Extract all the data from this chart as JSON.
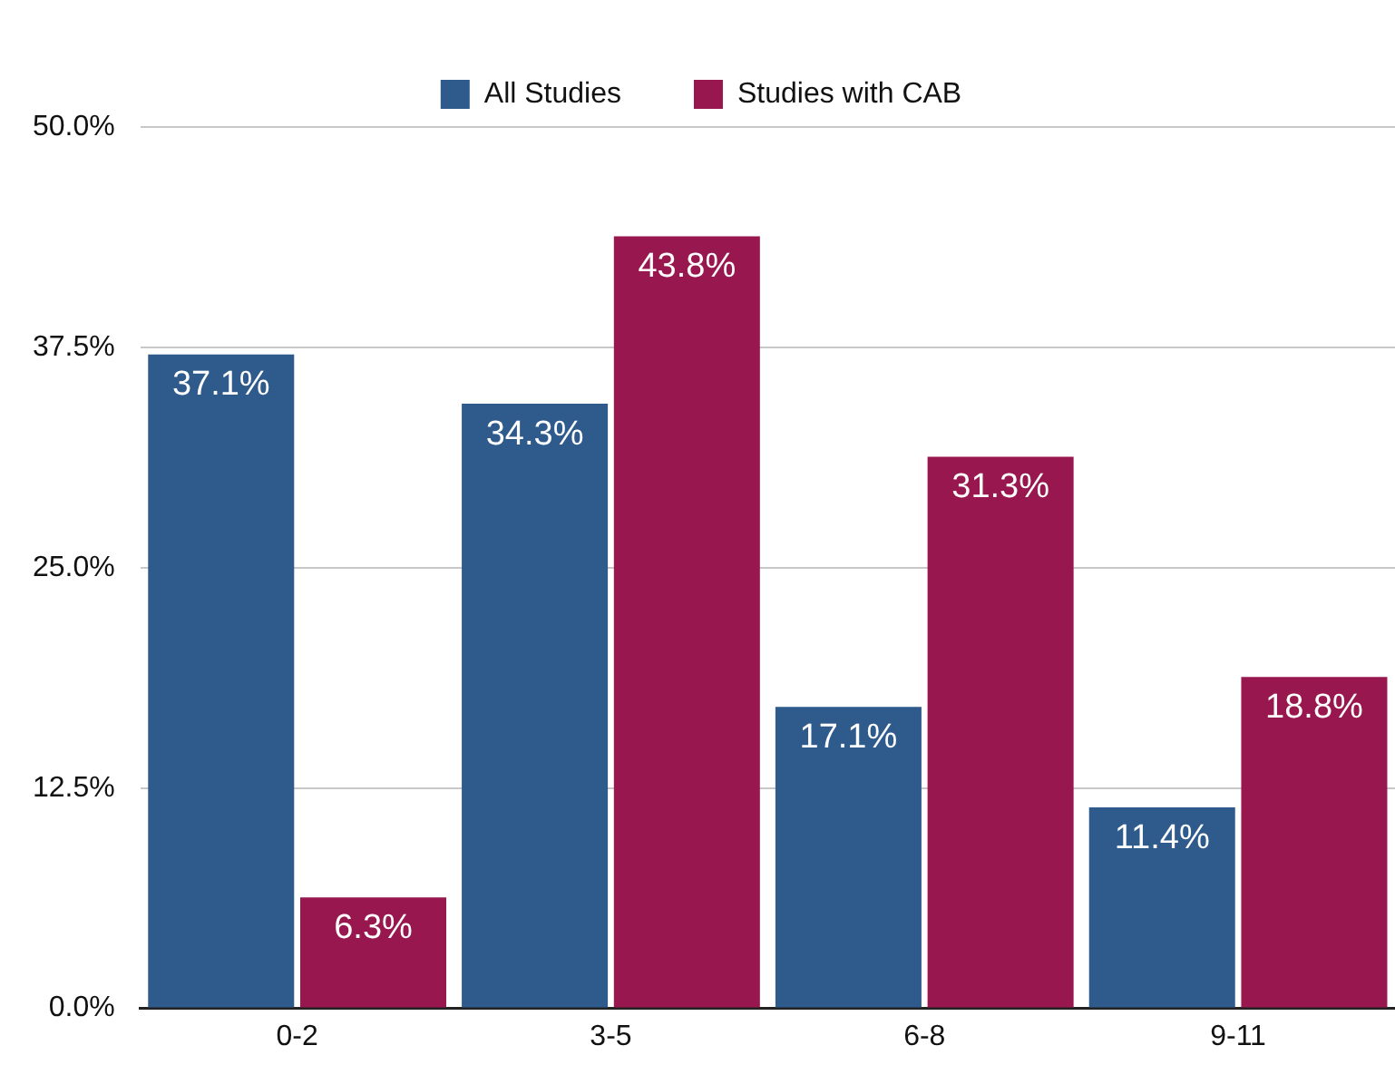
{
  "chart_data": {
    "type": "bar",
    "categories": [
      "0-2",
      "3-5",
      "6-8",
      "9-11"
    ],
    "series": [
      {
        "name": "All Studies",
        "color": "#2e5a8c",
        "values": [
          37.1,
          34.3,
          17.1,
          11.4
        ],
        "value_labels": [
          "37.1%",
          "34.3%",
          "17.1%",
          "11.4%"
        ]
      },
      {
        "name": "Studies with CAB",
        "color": "#98174f",
        "values": [
          6.3,
          43.8,
          31.3,
          18.8
        ],
        "value_labels": [
          "6.3%",
          "43.8%",
          "31.3%",
          "18.8%"
        ]
      }
    ],
    "ylim": [
      0,
      50
    ],
    "yticks": [
      {
        "value": 0,
        "label": "0.0%"
      },
      {
        "value": 12.5,
        "label": "12.5%"
      },
      {
        "value": 25,
        "label": "25.0%"
      },
      {
        "value": 37.5,
        "label": "37.5%"
      },
      {
        "value": 50,
        "label": "50.0%"
      }
    ],
    "grid": "y",
    "legend": "top"
  }
}
